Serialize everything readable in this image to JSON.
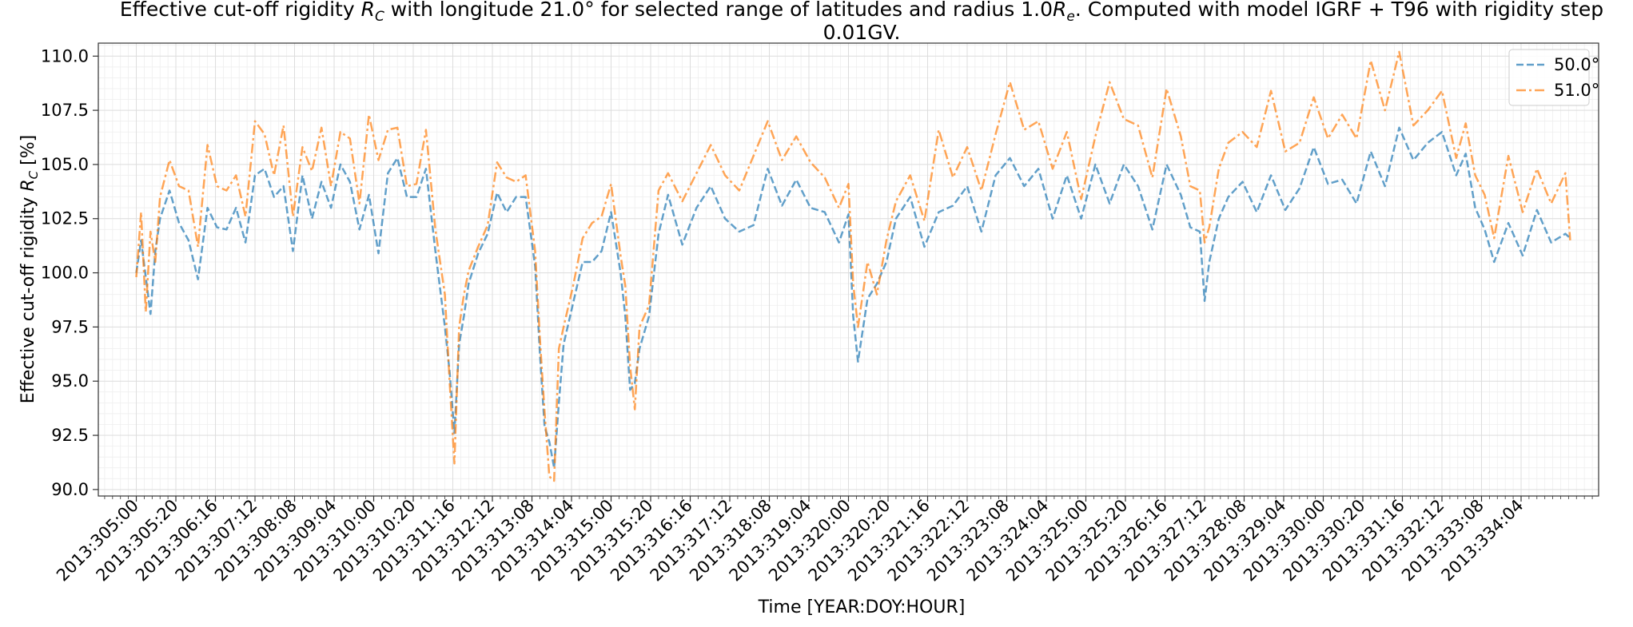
{
  "chart_data": {
    "type": "line",
    "title_line1_parts": [
      "Effective cut-off rigidity ",
      "R",
      "C",
      " with longitude 21.0° for selected range of latitudes and radius 1.0",
      "R",
      "e",
      ". Computed with model IGRF + T96 with rigidity step"
    ],
    "title_line2": "0.01GV.",
    "xlabel": "Time [YEAR:DOY:HOUR]",
    "ylabel_parts": [
      "Effective cut-off rigidity ",
      "R",
      "C",
      " [%]"
    ],
    "x_range_days": [
      304.2,
      335.8
    ],
    "ylim": [
      89.7,
      110.6
    ],
    "y_ticks": [
      90.0,
      92.5,
      95.0,
      97.5,
      100.0,
      102.5,
      105.0,
      107.5,
      110.0
    ],
    "y_tick_labels": [
      "90.0",
      "92.5",
      "95.0",
      "97.5",
      "100.0",
      "102.5",
      "105.0",
      "107.5",
      "110.0"
    ],
    "x_ticks_days": [
      305.0,
      305.8333,
      306.6667,
      307.5,
      308.3333,
      309.1667,
      310.0,
      310.8333,
      311.6667,
      312.5,
      313.3333,
      314.1667,
      315.0,
      315.8333,
      316.6667,
      317.5,
      318.3333,
      319.1667,
      320.0,
      320.8333,
      321.6667,
      322.5,
      323.3333,
      324.1667,
      325.0,
      325.8333,
      326.6667,
      327.5,
      328.3333,
      329.1667,
      330.0,
      330.8333,
      331.6667,
      332.5,
      333.3333,
      334.1667
    ],
    "x_tick_labels": [
      "2013:305:00",
      "2013:305:20",
      "2013:306:16",
      "2013:307:12",
      "2013:308:08",
      "2013:309:04",
      "2013:310:00",
      "2013:310:20",
      "2013:311:16",
      "2013:312:12",
      "2013:313:08",
      "2013:314:04",
      "2013:315:00",
      "2013:315:20",
      "2013:316:16",
      "2013:317:12",
      "2013:318:08",
      "2013:319:04",
      "2013:320:00",
      "2013:320:20",
      "2013:321:16",
      "2013:322:12",
      "2013:323:08",
      "2013:324:04",
      "2013:325:00",
      "2013:325:20",
      "2013:326:16",
      "2013:327:12",
      "2013:328:08",
      "2013:329:04",
      "2013:330:00",
      "2013:330:20",
      "2013:331:16",
      "2013:332:12",
      "2013:333:08",
      "2013:334:04"
    ],
    "grid": true,
    "legend_position": "top-right",
    "series": [
      {
        "name": "50.0°",
        "color": "#1f77b4",
        "linestyle": "dashed",
        "x": [
          305.0,
          305.1,
          305.2,
          305.3,
          305.4,
          305.5,
          305.7,
          305.9,
          306.1,
          306.3,
          306.5,
          306.7,
          306.9,
          307.1,
          307.3,
          307.5,
          307.7,
          307.9,
          308.1,
          308.3,
          308.5,
          308.7,
          308.9,
          309.1,
          309.3,
          309.5,
          309.7,
          309.9,
          310.1,
          310.3,
          310.5,
          310.7,
          310.9,
          311.1,
          311.3,
          311.5,
          311.6,
          311.7,
          311.8,
          311.9,
          312.0,
          312.2,
          312.4,
          312.6,
          312.8,
          313.0,
          313.2,
          313.4,
          313.5,
          313.6,
          313.7,
          313.8,
          313.9,
          314.0,
          314.2,
          314.4,
          314.6,
          314.8,
          315.0,
          315.2,
          315.3,
          315.4,
          315.5,
          315.6,
          315.8,
          316.0,
          316.2,
          316.5,
          316.8,
          317.1,
          317.4,
          317.7,
          318.0,
          318.3,
          318.6,
          318.9,
          319.2,
          319.5,
          319.8,
          320.0,
          320.1,
          320.2,
          320.4,
          320.6,
          320.8,
          321.0,
          321.3,
          321.6,
          321.9,
          322.2,
          322.5,
          322.8,
          323.1,
          323.4,
          323.7,
          324.0,
          324.3,
          324.6,
          324.9,
          325.2,
          325.5,
          325.8,
          326.1,
          326.4,
          326.7,
          327.0,
          327.2,
          327.4,
          327.5,
          327.6,
          327.8,
          328.0,
          328.3,
          328.6,
          328.9,
          329.2,
          329.5,
          329.8,
          330.1,
          330.4,
          330.7,
          331.0,
          331.3,
          331.6,
          331.9,
          332.2,
          332.5,
          332.8,
          333.0,
          333.2,
          333.4,
          333.6,
          333.9,
          334.2,
          334.5,
          334.8,
          335.1,
          335.2
        ],
        "y": [
          100.0,
          101.5,
          99.8,
          98.1,
          101.0,
          102.5,
          103.8,
          102.3,
          101.5,
          99.7,
          103.0,
          102.1,
          102.0,
          103.0,
          101.4,
          104.5,
          104.8,
          103.5,
          104.0,
          101.0,
          104.5,
          102.5,
          104.2,
          103.0,
          105.0,
          104.2,
          102.0,
          103.6,
          100.9,
          104.6,
          105.3,
          103.5,
          103.5,
          104.8,
          101.0,
          97.5,
          95.4,
          92.6,
          96.7,
          98.0,
          99.5,
          100.9,
          101.8,
          103.7,
          102.8,
          103.5,
          103.5,
          100.3,
          96.3,
          92.9,
          92.2,
          91.0,
          94.0,
          96.7,
          98.6,
          100.5,
          100.5,
          101.0,
          102.8,
          100.0,
          98.0,
          94.6,
          94.9,
          96.5,
          98.0,
          101.8,
          103.6,
          101.3,
          103.0,
          104.0,
          102.5,
          101.9,
          102.2,
          104.8,
          103.1,
          104.3,
          103.0,
          102.8,
          101.4,
          102.7,
          98.0,
          95.9,
          98.8,
          99.5,
          100.5,
          102.5,
          103.5,
          101.2,
          102.8,
          103.1,
          104.0,
          101.9,
          104.5,
          105.3,
          104.0,
          104.8,
          102.5,
          104.5,
          102.5,
          105.0,
          103.2,
          105.0,
          104.0,
          102.0,
          105.0,
          103.6,
          102.1,
          101.9,
          98.7,
          100.5,
          102.5,
          103.5,
          104.2,
          102.8,
          104.5,
          102.9,
          103.9,
          105.8,
          104.1,
          104.3,
          103.2,
          105.6,
          104.0,
          106.7,
          105.2,
          106.0,
          106.5,
          104.5,
          105.5,
          103.0,
          102.0,
          100.5,
          102.3,
          100.8,
          102.9,
          101.4,
          101.8,
          101.6
        ]
      },
      {
        "name": "51.0°",
        "color": "#ff7f0e",
        "linestyle": "dashdot",
        "x": [
          305.0,
          305.1,
          305.2,
          305.3,
          305.4,
          305.5,
          305.7,
          305.9,
          306.1,
          306.3,
          306.5,
          306.7,
          306.9,
          307.1,
          307.3,
          307.5,
          307.7,
          307.9,
          308.1,
          308.3,
          308.5,
          308.7,
          308.9,
          309.1,
          309.3,
          309.5,
          309.7,
          309.9,
          310.1,
          310.3,
          310.5,
          310.7,
          310.9,
          311.1,
          311.3,
          311.5,
          311.6,
          311.7,
          311.8,
          311.9,
          312.0,
          312.2,
          312.4,
          312.6,
          312.8,
          313.0,
          313.2,
          313.4,
          313.5,
          313.6,
          313.7,
          313.8,
          313.9,
          314.0,
          314.2,
          314.4,
          314.6,
          314.8,
          315.0,
          315.2,
          315.3,
          315.4,
          315.5,
          315.6,
          315.8,
          316.0,
          316.2,
          316.5,
          316.8,
          317.1,
          317.4,
          317.7,
          318.0,
          318.3,
          318.6,
          318.9,
          319.2,
          319.5,
          319.8,
          320.0,
          320.1,
          320.2,
          320.4,
          320.6,
          320.8,
          321.0,
          321.3,
          321.6,
          321.9,
          322.2,
          322.5,
          322.8,
          323.1,
          323.4,
          323.7,
          324.0,
          324.3,
          324.6,
          324.9,
          325.2,
          325.5,
          325.8,
          326.1,
          326.4,
          326.7,
          327.0,
          327.2,
          327.4,
          327.5,
          327.6,
          327.8,
          328.0,
          328.3,
          328.6,
          328.9,
          329.2,
          329.5,
          329.8,
          330.1,
          330.4,
          330.7,
          331.0,
          331.3,
          331.6,
          331.9,
          332.2,
          332.5,
          332.8,
          333.0,
          333.2,
          333.4,
          333.6,
          333.9,
          334.2,
          334.5,
          334.8,
          335.1,
          335.2
        ],
        "y": [
          99.8,
          102.8,
          98.2,
          101.9,
          100.5,
          103.5,
          105.2,
          104.0,
          103.8,
          101.2,
          105.9,
          104.0,
          103.8,
          104.5,
          102.6,
          107.0,
          106.4,
          104.5,
          106.8,
          102.6,
          105.8,
          104.7,
          106.7,
          104.0,
          106.5,
          106.2,
          103.2,
          107.3,
          105.2,
          106.6,
          106.7,
          104.0,
          104.1,
          106.6,
          102.0,
          99.0,
          94.9,
          91.2,
          97.5,
          99.0,
          100.1,
          101.2,
          102.2,
          105.1,
          104.4,
          104.2,
          104.5,
          101.0,
          97.0,
          93.6,
          90.6,
          90.4,
          96.5,
          97.5,
          99.4,
          101.6,
          102.3,
          102.6,
          104.1,
          100.8,
          99.4,
          95.7,
          93.7,
          97.5,
          98.5,
          103.8,
          104.6,
          103.3,
          104.6,
          105.9,
          104.5,
          103.8,
          105.4,
          107.0,
          105.2,
          106.3,
          105.1,
          104.4,
          103.0,
          104.1,
          99.5,
          97.5,
          100.5,
          99.0,
          101.5,
          103.3,
          104.5,
          102.4,
          106.6,
          104.4,
          105.8,
          103.8,
          106.4,
          108.8,
          106.6,
          107.0,
          104.8,
          106.5,
          103.4,
          106.3,
          108.8,
          107.1,
          106.8,
          104.4,
          108.5,
          106.3,
          104.0,
          103.8,
          101.4,
          102.1,
          104.8,
          106.0,
          106.5,
          105.8,
          108.4,
          105.6,
          106.0,
          108.1,
          106.2,
          107.3,
          106.2,
          109.8,
          107.5,
          110.2,
          106.8,
          107.5,
          108.4,
          105.3,
          106.9,
          104.5,
          103.6,
          101.6,
          105.4,
          102.8,
          104.8,
          103.2,
          104.6,
          101.5
        ]
      }
    ]
  }
}
